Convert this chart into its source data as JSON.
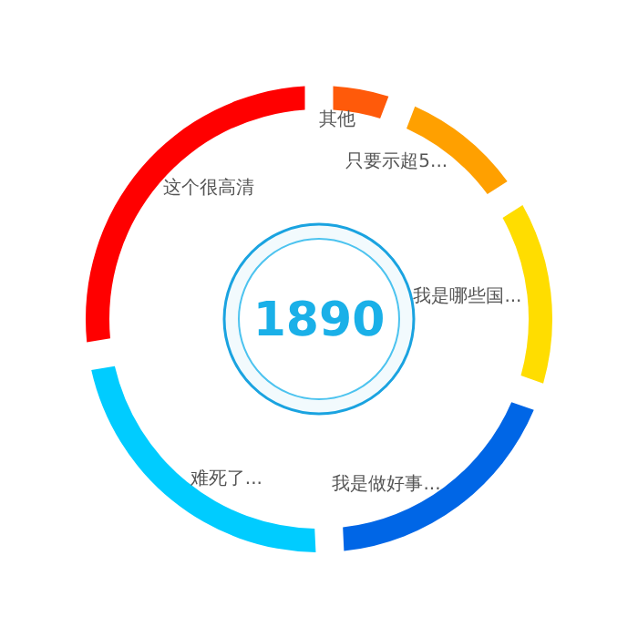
{
  "chart_data": {
    "type": "donut",
    "categories": [
      "其他",
      "只要示超5...",
      "我是哪些国...",
      "我是做好事...",
      "难死了...",
      "这个很高清"
    ],
    "values": [
      4.76,
      9.52,
      14.29,
      19.05,
      23.81,
      28.57
    ],
    "colors": [
      "#ff5a0a",
      "#ffa000",
      "#ffdd00",
      "#0066e6",
      "#00ccff",
      "#ff0000"
    ],
    "annotations": [
      "1890"
    ]
  }
}
